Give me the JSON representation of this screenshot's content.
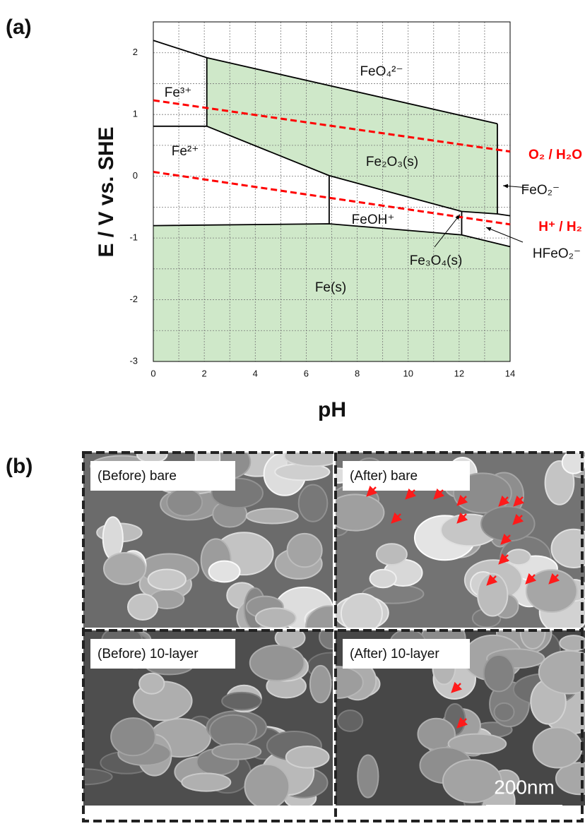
{
  "panel_a": "(a)",
  "panel_b": "(b)",
  "chart_data": {
    "type": "pourbaix",
    "xlabel": "pH",
    "ylabel": "E / V vs. SHE",
    "xlim": [
      0,
      14
    ],
    "ylim": [
      -3,
      2.5
    ],
    "xticks": [
      0,
      2,
      4,
      6,
      8,
      10,
      12,
      14
    ],
    "yticks": [
      -3,
      -2,
      -1,
      0,
      1,
      2
    ],
    "grid": true,
    "xgrid": [
      1,
      3,
      5,
      7,
      9,
      11,
      13
    ],
    "ygrid": [
      -2.5,
      -1.5,
      -0.5,
      0.5,
      1.5
    ],
    "series": [
      {
        "name": "O₂ / H₂O",
        "color": "#ff0000",
        "x": [
          0,
          14
        ],
        "values": [
          1.23,
          0.4
        ]
      },
      {
        "name": "H⁺ / H₂",
        "color": "#ff0000",
        "x": [
          0,
          14
        ],
        "values": [
          0.07,
          -0.78
        ]
      }
    ],
    "boundaries": [
      {
        "x": [
          0,
          2.1,
          13.5
        ],
        "values": [
          2.2,
          1.92,
          0.85
        ]
      },
      {
        "x": [
          0,
          2.1
        ],
        "values": [
          0.81,
          0.81
        ]
      },
      {
        "x": [
          2.1,
          2.1
        ],
        "values": [
          0.81,
          1.92
        ]
      },
      {
        "x": [
          2.1,
          6.9,
          12.1,
          13.5,
          14
        ],
        "values": [
          0.81,
          0.01,
          -0.57,
          -0.61,
          -0.64
        ]
      },
      {
        "x": [
          6.9,
          6.9
        ],
        "values": [
          0.01,
          -0.77
        ]
      },
      {
        "x": [
          0,
          6.9,
          12.1,
          14
        ],
        "values": [
          -0.8,
          -0.77,
          -0.95,
          -1.14
        ]
      },
      {
        "x": [
          12.1,
          12.1
        ],
        "values": [
          -0.57,
          -0.95
        ]
      },
      {
        "x": [
          13.5,
          13.5
        ],
        "values": [
          0.85,
          -0.61
        ]
      }
    ],
    "regions": [
      {
        "color": "#cfe8c9",
        "x": [
          2.1,
          13.5,
          13.5,
          12.1,
          6.9,
          2.1
        ],
        "values": [
          1.92,
          0.85,
          -0.61,
          -0.57,
          0.01,
          0.81
        ]
      },
      {
        "color": "#cfe8c9",
        "x": [
          0,
          6.9,
          12.1,
          14,
          14,
          0
        ],
        "values": [
          -0.8,
          -0.77,
          -0.95,
          -1.14,
          -3,
          -3
        ]
      }
    ],
    "annotations": [
      "Fe³⁺",
      "FeO₄²⁻",
      "Fe²⁺",
      "Fe₂O₃(s)",
      "FeOH⁺",
      "Fe(s)",
      "Fe₃O₄(s)",
      "FeO₂⁻",
      "HFeO₂⁻"
    ]
  },
  "images": [
    {
      "label": "(Before) bare"
    },
    {
      "label": "(After) bare"
    },
    {
      "label": "(Before) 10-layer"
    },
    {
      "label": "(After) 10-layer"
    }
  ],
  "scale_bar": "200nm"
}
